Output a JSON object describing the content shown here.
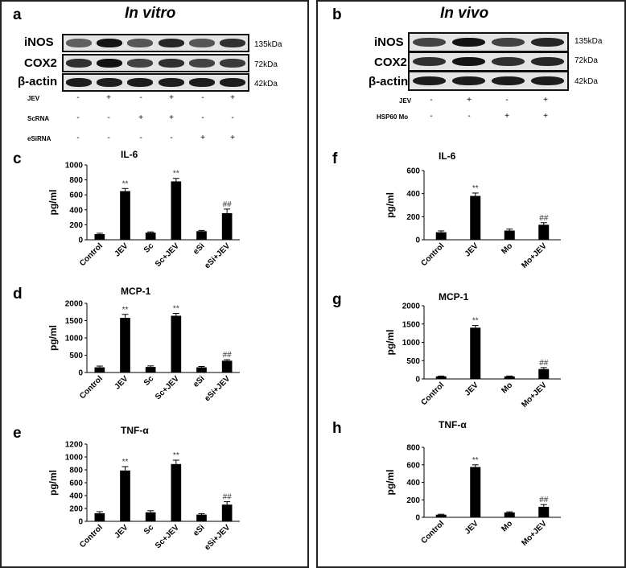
{
  "left": {
    "panel_letter": "a",
    "title": "In vitro",
    "blots": [
      {
        "label": "iNOS",
        "kda": "135kDa",
        "intensity": [
          0.55,
          0.95,
          0.6,
          0.85,
          0.6,
          0.8
        ]
      },
      {
        "label": "COX2",
        "kda": "72kDa",
        "intensity": [
          0.8,
          0.95,
          0.7,
          0.8,
          0.7,
          0.75
        ]
      },
      {
        "label": "β-actin",
        "kda": "42kDa",
        "intensity": [
          0.9,
          0.9,
          0.9,
          0.9,
          0.9,
          0.9
        ]
      }
    ],
    "conditions": [
      {
        "label": "JEV",
        "signs": [
          "-",
          "+",
          "-",
          "+",
          "-",
          "+"
        ]
      },
      {
        "label": "ScRNA",
        "signs": [
          "-",
          "-",
          "+",
          "+",
          "-",
          "-"
        ]
      },
      {
        "label": "eSiRNA",
        "signs": [
          "-",
          "-",
          "-",
          "-",
          "+",
          "+"
        ]
      }
    ]
  },
  "right": {
    "panel_letter": "b",
    "title": "In vivo",
    "blots": [
      {
        "label": "iNOS",
        "kda": "135kDa",
        "intensity": [
          0.7,
          0.95,
          0.7,
          0.85
        ]
      },
      {
        "label": "COX2",
        "kda": "72kDa",
        "intensity": [
          0.8,
          0.95,
          0.8,
          0.85
        ]
      },
      {
        "label": "β-actin",
        "kda": "42kDa",
        "intensity": [
          0.9,
          0.9,
          0.9,
          0.9
        ]
      }
    ],
    "conditions": [
      {
        "label": "JEV",
        "signs": [
          "-",
          "+",
          "-",
          "+"
        ]
      },
      {
        "label": "HSP60 Mo",
        "signs": [
          "-",
          "-",
          "+",
          "+"
        ]
      }
    ]
  },
  "chart_data": [
    {
      "panel": "c",
      "type": "bar",
      "title": "IL-6",
      "ylabel": "pg/ml",
      "ylim": [
        0,
        1000
      ],
      "yticks": [
        0,
        200,
        400,
        600,
        800,
        1000
      ],
      "categories": [
        "Control",
        "JEV",
        "Sc",
        "Sc+JEV",
        "eSi",
        "eSi+JEV"
      ],
      "values": [
        75,
        650,
        95,
        780,
        115,
        355
      ],
      "errors": [
        12,
        35,
        10,
        40,
        10,
        55
      ],
      "annotations": [
        "",
        "**",
        "",
        "**",
        "",
        "##"
      ]
    },
    {
      "panel": "d",
      "type": "bar",
      "title": "MCP-1",
      "ylabel": "pg/ml",
      "ylim": [
        0,
        2000
      ],
      "yticks": [
        0,
        500,
        1000,
        1500,
        2000
      ],
      "categories": [
        "Control",
        "JEV",
        "Sc",
        "Sc+JEV",
        "eSi",
        "eSi+JEV"
      ],
      "values": [
        150,
        1580,
        160,
        1640,
        150,
        340
      ],
      "errors": [
        35,
        100,
        30,
        70,
        25,
        30
      ],
      "annotations": [
        "",
        "**",
        "",
        "**",
        "",
        "##"
      ]
    },
    {
      "panel": "e",
      "type": "bar",
      "title": "TNF-α",
      "ylabel": "pg/ml",
      "ylim": [
        0,
        1200
      ],
      "yticks": [
        0,
        200,
        400,
        600,
        800,
        1000,
        1200
      ],
      "categories": [
        "Control",
        "JEV",
        "Sc",
        "Sc+JEV",
        "eSi",
        "eSi+JEV"
      ],
      "values": [
        125,
        790,
        140,
        890,
        105,
        260
      ],
      "errors": [
        25,
        60,
        25,
        60,
        15,
        45
      ],
      "annotations": [
        "",
        "**",
        "",
        "**",
        "",
        "##"
      ]
    },
    {
      "panel": "f",
      "type": "bar",
      "title": "IL-6",
      "ylabel": "pg/ml",
      "ylim": [
        0,
        600
      ],
      "yticks": [
        0,
        200,
        400,
        600
      ],
      "categories": [
        "Control",
        "JEV",
        "Mo",
        "Mo+JEV"
      ],
      "values": [
        65,
        380,
        80,
        130
      ],
      "errors": [
        12,
        25,
        12,
        18
      ],
      "annotations": [
        "",
        "**",
        "",
        "##"
      ]
    },
    {
      "panel": "g",
      "type": "bar",
      "title": "MCP-1",
      "ylabel": "pg/ml",
      "ylim": [
        0,
        2000
      ],
      "yticks": [
        0,
        500,
        1000,
        1500,
        2000
      ],
      "categories": [
        "Control",
        "JEV",
        "Mo",
        "Mo+JEV"
      ],
      "values": [
        70,
        1400,
        70,
        270
      ],
      "errors": [
        10,
        60,
        10,
        40
      ],
      "annotations": [
        "",
        "**",
        "",
        "##"
      ]
    },
    {
      "panel": "h",
      "type": "bar",
      "title": "TNF-α",
      "ylabel": "pg/ml",
      "ylim": [
        0,
        800
      ],
      "yticks": [
        0,
        200,
        400,
        600,
        800
      ],
      "categories": [
        "Control",
        "JEV",
        "Mo",
        "Mo+JEV"
      ],
      "values": [
        30,
        575,
        55,
        120
      ],
      "errors": [
        5,
        25,
        8,
        25
      ],
      "annotations": [
        "",
        "**",
        "",
        "##"
      ]
    }
  ]
}
